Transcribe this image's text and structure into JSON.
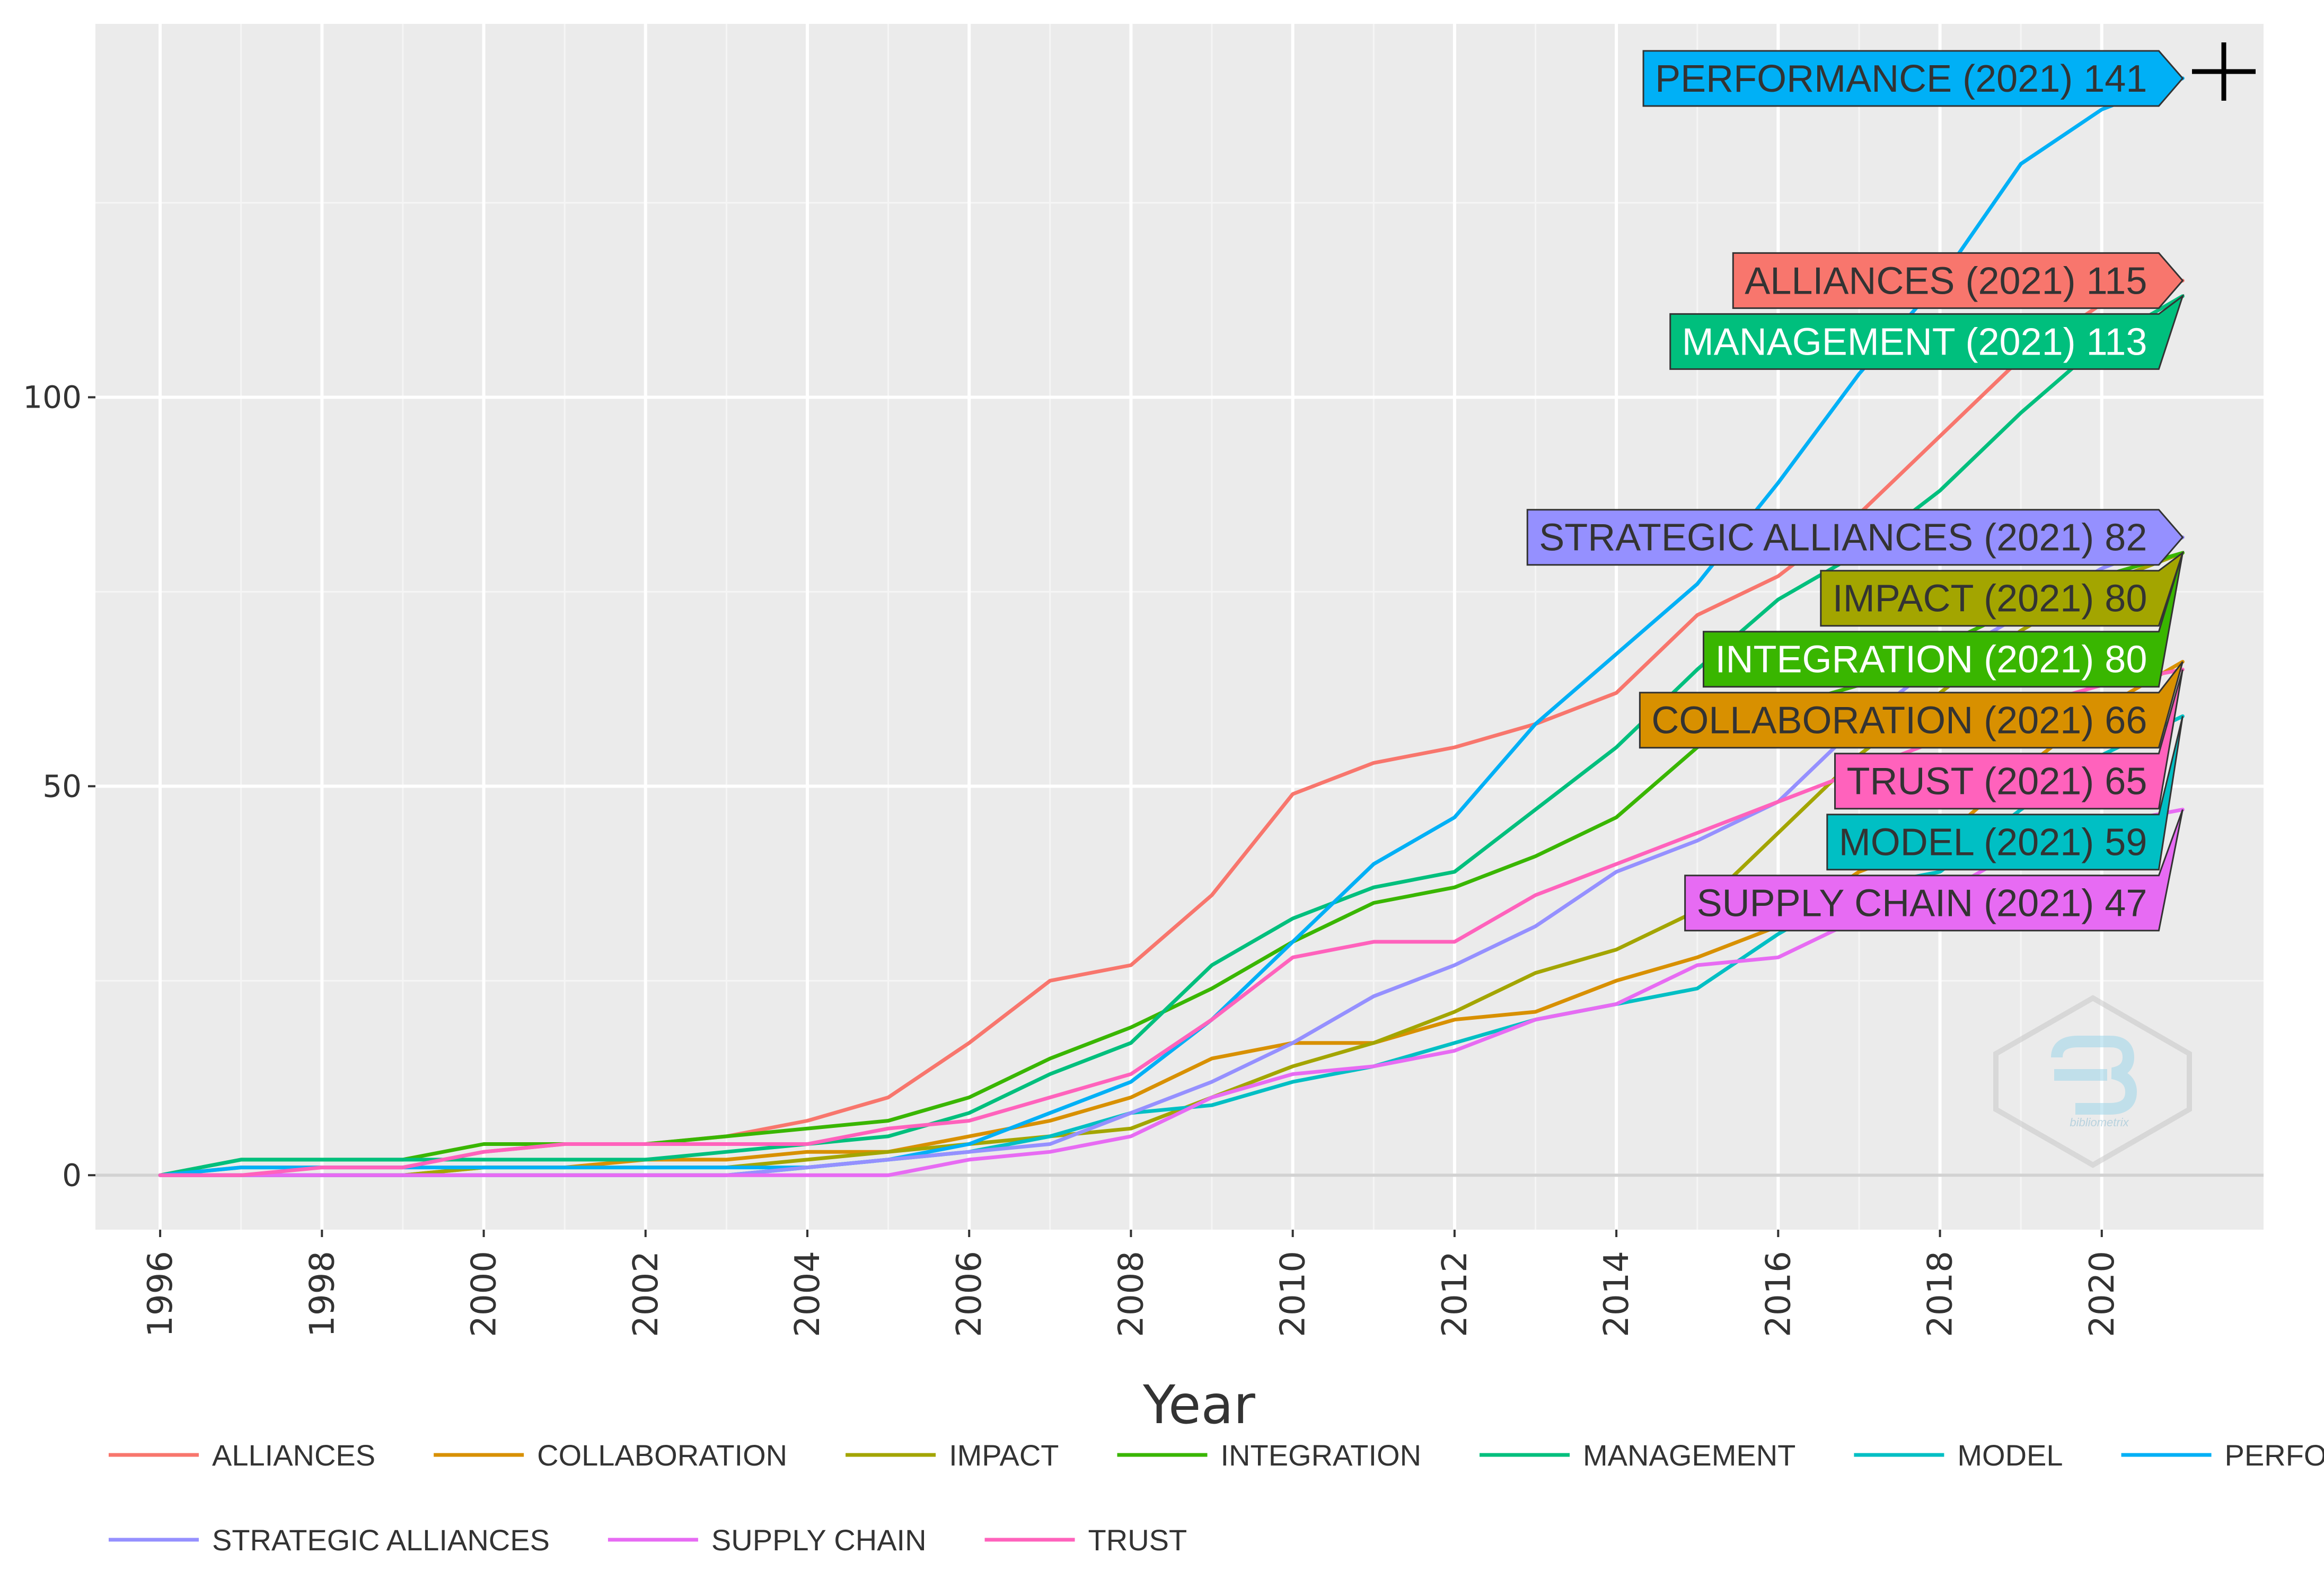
{
  "chart_data": {
    "type": "line",
    "title": "",
    "xlabel": "Year",
    "ylabel": "",
    "xlim": [
      1995.2,
      2022.0
    ],
    "ylim": [
      -7,
      148
    ],
    "y_ticks": [
      0,
      50,
      100
    ],
    "y_tick_labels": [
      "0",
      "50",
      "100"
    ],
    "x_ticks": [
      1996,
      1998,
      2000,
      2002,
      2004,
      2006,
      2008,
      2010,
      2012,
      2014,
      2016,
      2018,
      2020
    ],
    "x_tick_labels": [
      "1996",
      "1998",
      "2000",
      "2002",
      "2004",
      "2006",
      "2008",
      "2010",
      "2012",
      "2014",
      "2016",
      "2018",
      "2020"
    ],
    "grid": true,
    "legend_position": "bottom",
    "x": [
      1996,
      1997,
      1998,
      1999,
      2000,
      2001,
      2002,
      2003,
      2004,
      2005,
      2006,
      2007,
      2008,
      2009,
      2010,
      2011,
      2012,
      2013,
      2014,
      2015,
      2016,
      2017,
      2018,
      2019,
      2020,
      2021
    ],
    "series": [
      {
        "name": "ALLIANCES",
        "color": "#F8766D",
        "values": [
          0,
          1,
          1,
          1,
          3,
          4,
          4,
          5,
          7,
          10,
          17,
          25,
          27,
          36,
          49,
          53,
          55,
          58,
          62,
          72,
          77,
          85,
          95,
          105,
          112,
          115
        ],
        "end_label": "ALLIANCES (2021) 115",
        "label_text_color": "#333333"
      },
      {
        "name": "COLLABORATION",
        "color": "#D89000",
        "values": [
          0,
          0,
          0,
          0,
          1,
          1,
          2,
          2,
          3,
          3,
          5,
          7,
          10,
          15,
          17,
          17,
          20,
          21,
          25,
          28,
          32,
          39,
          43,
          52,
          60,
          66
        ],
        "end_label": "COLLABORATION (2021) 66",
        "label_text_color": "#333333"
      },
      {
        "name": "IMPACT",
        "color": "#A3A500",
        "values": [
          0,
          0,
          0,
          0,
          1,
          1,
          1,
          1,
          2,
          3,
          4,
          5,
          6,
          10,
          14,
          17,
          21,
          26,
          29,
          34,
          44,
          54,
          62,
          70,
          76,
          80
        ],
        "end_label": "IMPACT (2021) 80",
        "label_text_color": "#333333"
      },
      {
        "name": "INTEGRATION",
        "color": "#39B600",
        "values": [
          0,
          2,
          2,
          2,
          4,
          4,
          4,
          5,
          6,
          7,
          10,
          15,
          19,
          24,
          30,
          35,
          37,
          41,
          46,
          55,
          60,
          63,
          68,
          73,
          77,
          80
        ],
        "end_label": "INTEGRATION (2021) 80",
        "label_text_color": "#ffffff"
      },
      {
        "name": "MANAGEMENT",
        "color": "#00BF7D",
        "values": [
          0,
          2,
          2,
          2,
          2,
          2,
          2,
          3,
          4,
          5,
          8,
          13,
          17,
          27,
          33,
          37,
          39,
          47,
          55,
          65,
          74,
          80,
          88,
          98,
          107,
          113
        ],
        "end_label": "MANAGEMENT (2021) 113",
        "label_text_color": "#ffffff"
      },
      {
        "name": "MODEL",
        "color": "#00BFC4",
        "values": [
          0,
          0,
          0,
          0,
          0,
          0,
          0,
          0,
          1,
          2,
          3,
          5,
          8,
          9,
          12,
          14,
          17,
          20,
          22,
          24,
          31,
          37,
          39,
          47,
          54,
          59
        ],
        "end_label": "MODEL (2021) 59",
        "label_text_color": "#333333"
      },
      {
        "name": "PERFORMANCE",
        "color": "#00B0F6",
        "values": [
          0,
          1,
          1,
          1,
          1,
          1,
          1,
          1,
          1,
          2,
          4,
          8,
          12,
          20,
          30,
          40,
          46,
          58,
          67,
          76,
          89,
          103,
          115,
          130,
          137,
          141
        ],
        "end_label": "PERFORMANCE (2021) 141",
        "label_text_color": "#333333"
      },
      {
        "name": "STRATEGIC ALLIANCES",
        "color": "#9590FF",
        "values": [
          0,
          0,
          0,
          0,
          0,
          0,
          0,
          0,
          1,
          2,
          3,
          4,
          8,
          12,
          17,
          23,
          27,
          32,
          39,
          43,
          48,
          58,
          66,
          72,
          78,
          82
        ],
        "end_label": "STRATEGIC ALLIANCES (2021) 82",
        "label_text_color": "#333333"
      },
      {
        "name": "SUPPLY CHAIN",
        "color": "#E76BF3",
        "values": [
          0,
          0,
          0,
          0,
          0,
          0,
          0,
          0,
          0,
          0,
          2,
          3,
          5,
          10,
          13,
          14,
          16,
          20,
          22,
          27,
          28,
          33,
          36,
          42,
          45,
          47
        ],
        "end_label": "SUPPLY CHAIN (2021) 47",
        "label_text_color": "#333333"
      },
      {
        "name": "TRUST",
        "color": "#FF62BC",
        "values": [
          0,
          0,
          1,
          1,
          3,
          4,
          4,
          4,
          4,
          6,
          7,
          10,
          13,
          20,
          28,
          30,
          30,
          36,
          40,
          44,
          48,
          52,
          56,
          60,
          63,
          65
        ],
        "end_label": "TRUST (2021) 65",
        "label_text_color": "#333333"
      }
    ],
    "watermark": "bibliometrix"
  }
}
